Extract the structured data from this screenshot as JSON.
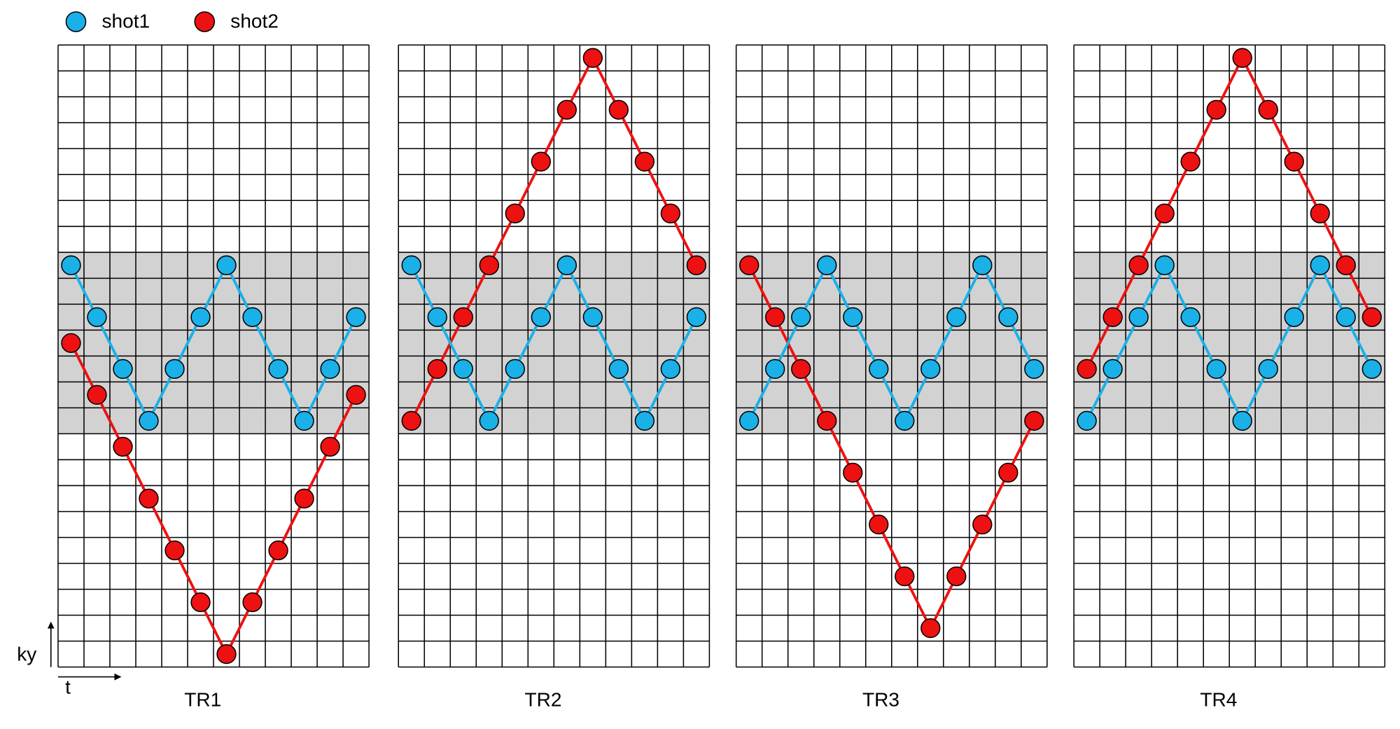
{
  "legend": [
    {
      "name": "shot1",
      "color": "#1ab0e8"
    },
    {
      "name": "shot2",
      "color": "#ee1111"
    }
  ],
  "axes": {
    "y_label": "ky",
    "x_label": "t"
  },
  "grid": {
    "columns": 12,
    "rows": 24,
    "shaded_rows": [
      8,
      14
    ]
  },
  "panels": [
    {
      "title": "TR1",
      "series": [
        {
          "rows": [
            8,
            10,
            12,
            14,
            12,
            10,
            8,
            10,
            12,
            14,
            12,
            10
          ]
        },
        {
          "rows": [
            11,
            13,
            15,
            17,
            19,
            21,
            23,
            21,
            19,
            17,
            15,
            13
          ]
        }
      ]
    },
    {
      "title": "TR2",
      "series": [
        {
          "rows": [
            8,
            10,
            12,
            14,
            12,
            10,
            8,
            10,
            12,
            14,
            12,
            10
          ]
        },
        {
          "rows": [
            14,
            12,
            10,
            8,
            6,
            4,
            2,
            0,
            2,
            4,
            6,
            8
          ]
        }
      ]
    },
    {
      "title": "TR3",
      "series": [
        {
          "rows": [
            14,
            12,
            10,
            8,
            10,
            12,
            14,
            12,
            10,
            8,
            10,
            12
          ]
        },
        {
          "rows": [
            8,
            10,
            12,
            14,
            16,
            18,
            20,
            22,
            20,
            18,
            16,
            14
          ]
        }
      ]
    },
    {
      "title": "TR4",
      "series": [
        {
          "rows": [
            14,
            12,
            10,
            8,
            10,
            12,
            14,
            12,
            10,
            8,
            10,
            12
          ]
        },
        {
          "rows": [
            12,
            10,
            8,
            6,
            4,
            2,
            0,
            2,
            4,
            6,
            8,
            10
          ]
        }
      ]
    }
  ]
}
